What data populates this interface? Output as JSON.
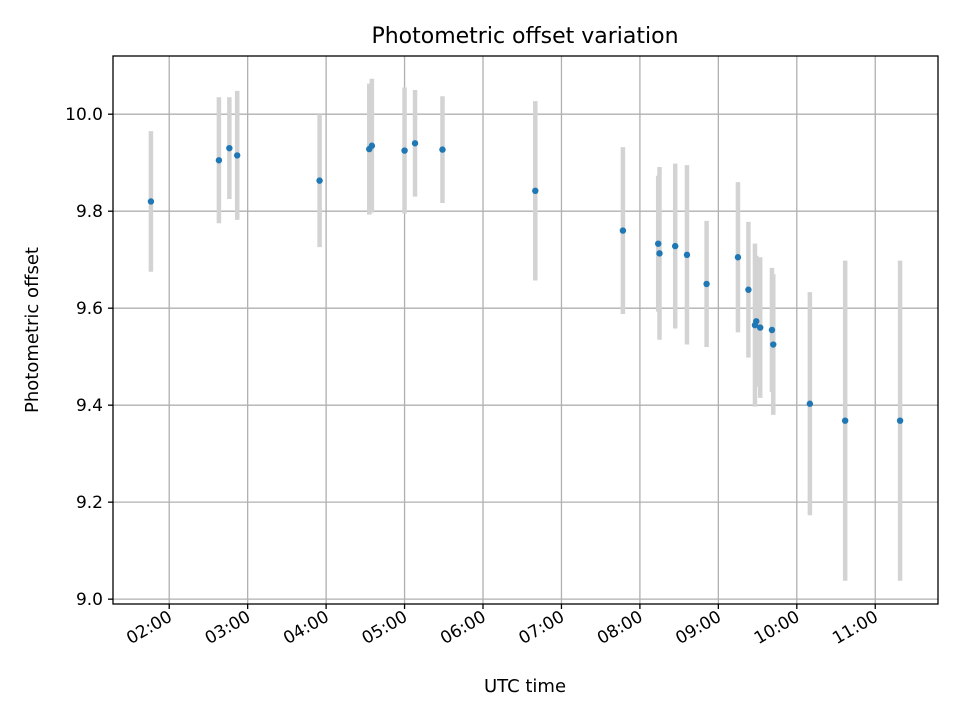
{
  "chart_data": {
    "type": "scatter",
    "title": "Photometric offset variation",
    "xlabel": "UTC time",
    "ylabel": "Photometric offset",
    "xlim": [
      "01:17",
      "11:48"
    ],
    "ylim": [
      8.99,
      10.12
    ],
    "x_ticks": [
      "02:00",
      "03:00",
      "04:00",
      "05:00",
      "06:00",
      "07:00",
      "08:00",
      "09:00",
      "10:00",
      "11:00"
    ],
    "y_ticks": [
      9.0,
      9.2,
      9.4,
      9.6,
      9.8,
      10.0
    ],
    "y_tick_labels": [
      "9.0",
      "9.2",
      "9.4",
      "9.6",
      "9.8",
      "10.0"
    ],
    "grid": true,
    "point_color": "#1f77b4",
    "errorbar_color": "#d3d3d3",
    "series": [
      {
        "points": [
          {
            "t": "01:46",
            "y": 9.82,
            "err": 0.145
          },
          {
            "t": "02:38",
            "y": 9.905,
            "err": 0.13
          },
          {
            "t": "02:46",
            "y": 9.93,
            "err": 0.105
          },
          {
            "t": "02:52",
            "y": 9.915,
            "err": 0.133
          },
          {
            "t": "03:55",
            "y": 9.863,
            "err": 0.137
          },
          {
            "t": "04:33",
            "y": 9.928,
            "err": 0.135
          },
          {
            "t": "04:35",
            "y": 9.935,
            "err": 0.138
          },
          {
            "t": "05:00",
            "y": 9.925,
            "err": 0.13
          },
          {
            "t": "05:08",
            "y": 9.94,
            "err": 0.11
          },
          {
            "t": "05:29",
            "y": 9.927,
            "err": 0.11
          },
          {
            "t": "06:40",
            "y": 9.842,
            "err": 0.185
          },
          {
            "t": "07:47",
            "y": 9.76,
            "err": 0.172
          },
          {
            "t": "08:14",
            "y": 9.733,
            "err": 0.14
          },
          {
            "t": "08:15",
            "y": 9.713,
            "err": 0.178
          },
          {
            "t": "08:27",
            "y": 9.728,
            "err": 0.17
          },
          {
            "t": "08:36",
            "y": 9.71,
            "err": 0.185
          },
          {
            "t": "08:51",
            "y": 9.65,
            "err": 0.13
          },
          {
            "t": "09:15",
            "y": 9.705,
            "err": 0.155
          },
          {
            "t": "09:23",
            "y": 9.638,
            "err": 0.14
          },
          {
            "t": "09:28",
            "y": 9.565,
            "err": 0.168
          },
          {
            "t": "09:29",
            "y": 9.573,
            "err": 0.135
          },
          {
            "t": "09:32",
            "y": 9.56,
            "err": 0.145
          },
          {
            "t": "09:41",
            "y": 9.555,
            "err": 0.128
          },
          {
            "t": "09:42",
            "y": 9.525,
            "err": 0.145
          },
          {
            "t": "10:10",
            "y": 9.403,
            "err": 0.23
          },
          {
            "t": "10:37",
            "y": 9.368,
            "err": 0.33
          },
          {
            "t": "11:19",
            "y": 9.368,
            "err": 0.33
          }
        ]
      }
    ]
  }
}
